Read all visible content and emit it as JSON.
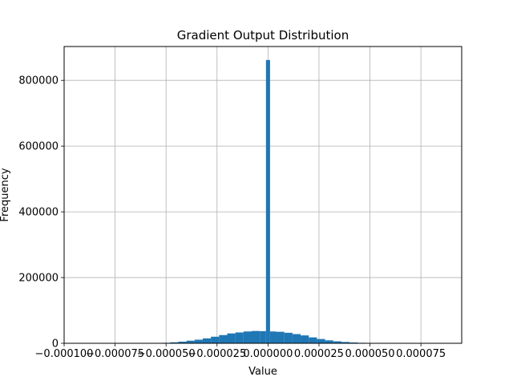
{
  "chart_data": {
    "type": "bar",
    "title": "Gradient Output Distribution",
    "xlabel": "Value",
    "ylabel": "Frequency",
    "xlim": [
      -0.0001,
      9.5e-05
    ],
    "ylim": [
      0,
      903000
    ],
    "grid": true,
    "bar_color": "#1f77b4",
    "x_ticks": [
      -0.0001,
      -7.5e-05,
      -5e-05,
      -2.5e-05,
      0.0,
      2.5e-05,
      5e-05,
      7.5e-05
    ],
    "x_tick_labels": [
      "−0.000100",
      "−0.000075",
      "−0.000050",
      "−0.000025",
      "0.000000",
      "0.000025",
      "0.000050",
      "0.000075"
    ],
    "y_ticks": [
      0,
      200000,
      400000,
      600000,
      800000
    ],
    "y_tick_labels": [
      "0",
      "200000",
      "400000",
      "600000",
      "800000"
    ],
    "bin_edges": [
      -0.0001,
      -9.6e-05,
      -9.2e-05,
      -8.8e-05,
      -8.4e-05,
      -8e-05,
      -7.6e-05,
      -7.2e-05,
      -6.8e-05,
      -6.4e-05,
      -6e-05,
      -5.6e-05,
      -5.2e-05,
      -4.8e-05,
      -4.4e-05,
      -4e-05,
      -3.6e-05,
      -3.2e-05,
      -2.8e-05,
      -2.4e-05,
      -2e-05,
      -1.6e-05,
      -1.2e-05,
      -8e-06,
      -4e-06,
      -1e-06,
      1e-06,
      4e-06,
      8e-06,
      1.2e-05,
      1.6e-05,
      2e-05,
      2.4e-05,
      2.8e-05,
      3.2e-05,
      3.6e-05,
      4e-05,
      4.4e-05,
      4.8e-05,
      5.2e-05,
      5.6e-05,
      6e-05,
      6.4e-05,
      6.8e-05,
      7.2e-05,
      7.6e-05,
      8e-05,
      8.4e-05,
      8.8e-05,
      9.2e-05
    ],
    "counts": [
      0,
      0,
      0,
      0,
      0,
      0,
      0,
      0,
      0,
      0,
      0,
      500,
      1500,
      3000,
      5000,
      8000,
      11000,
      15000,
      20000,
      25000,
      30000,
      33000,
      36000,
      37500,
      37000,
      862000,
      36000,
      35000,
      32000,
      28000,
      24000,
      18000,
      13000,
      9000,
      6000,
      4000,
      2500,
      1500,
      800,
      400,
      200,
      100,
      0,
      0,
      0,
      0,
      0,
      0,
      0
    ]
  }
}
